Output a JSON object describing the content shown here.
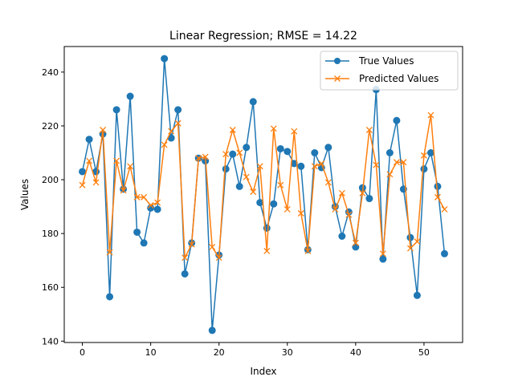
{
  "chart_data": {
    "type": "line",
    "title": "Linear Regression; RMSE = 14.22",
    "xlabel": "Index",
    "ylabel": "Values",
    "xlim": [
      -2.65,
      55.65
    ],
    "ylim": [
      139.5,
      249.5
    ],
    "x_ticks": [
      0,
      10,
      20,
      30,
      40,
      50
    ],
    "y_ticks": [
      140,
      160,
      180,
      200,
      220,
      240
    ],
    "legend_position": "top-right",
    "grid": false,
    "series": [
      {
        "name": "True Values",
        "color": "#1f77b4",
        "marker": "circle",
        "values": [
          203,
          215,
          203,
          217,
          156.5,
          226,
          196.5,
          231,
          180.5,
          176.5,
          189.5,
          189,
          245,
          215.5,
          226,
          165,
          176.5,
          208,
          207,
          144,
          172,
          204,
          209.5,
          197.5,
          212,
          229,
          191.5,
          182,
          191,
          211.5,
          210.5,
          206,
          205,
          174,
          210,
          204.5,
          212,
          190,
          179,
          188,
          175,
          197,
          193,
          233.5,
          170.5,
          210,
          222,
          196.5,
          178.5,
          157,
          204,
          210,
          197.5,
          172.5
        ]
      },
      {
        "name": "Predicted Values",
        "color": "#ff7f0e",
        "marker": "x",
        "values": [
          198,
          207,
          199,
          218.5,
          173,
          207,
          196,
          205,
          193.5,
          193.5,
          190.5,
          191.5,
          213,
          218,
          221,
          171,
          176,
          208,
          208.5,
          175,
          171,
          209.5,
          218.5,
          210,
          201,
          195.5,
          205,
          173.5,
          219,
          198,
          189,
          218,
          187.5,
          173.5,
          205,
          206,
          199,
          189,
          195,
          187,
          176.5,
          195,
          218.5,
          205.5,
          172.5,
          202,
          206.5,
          206.5,
          174.5,
          177,
          209,
          224,
          193.5,
          189
        ]
      }
    ]
  }
}
